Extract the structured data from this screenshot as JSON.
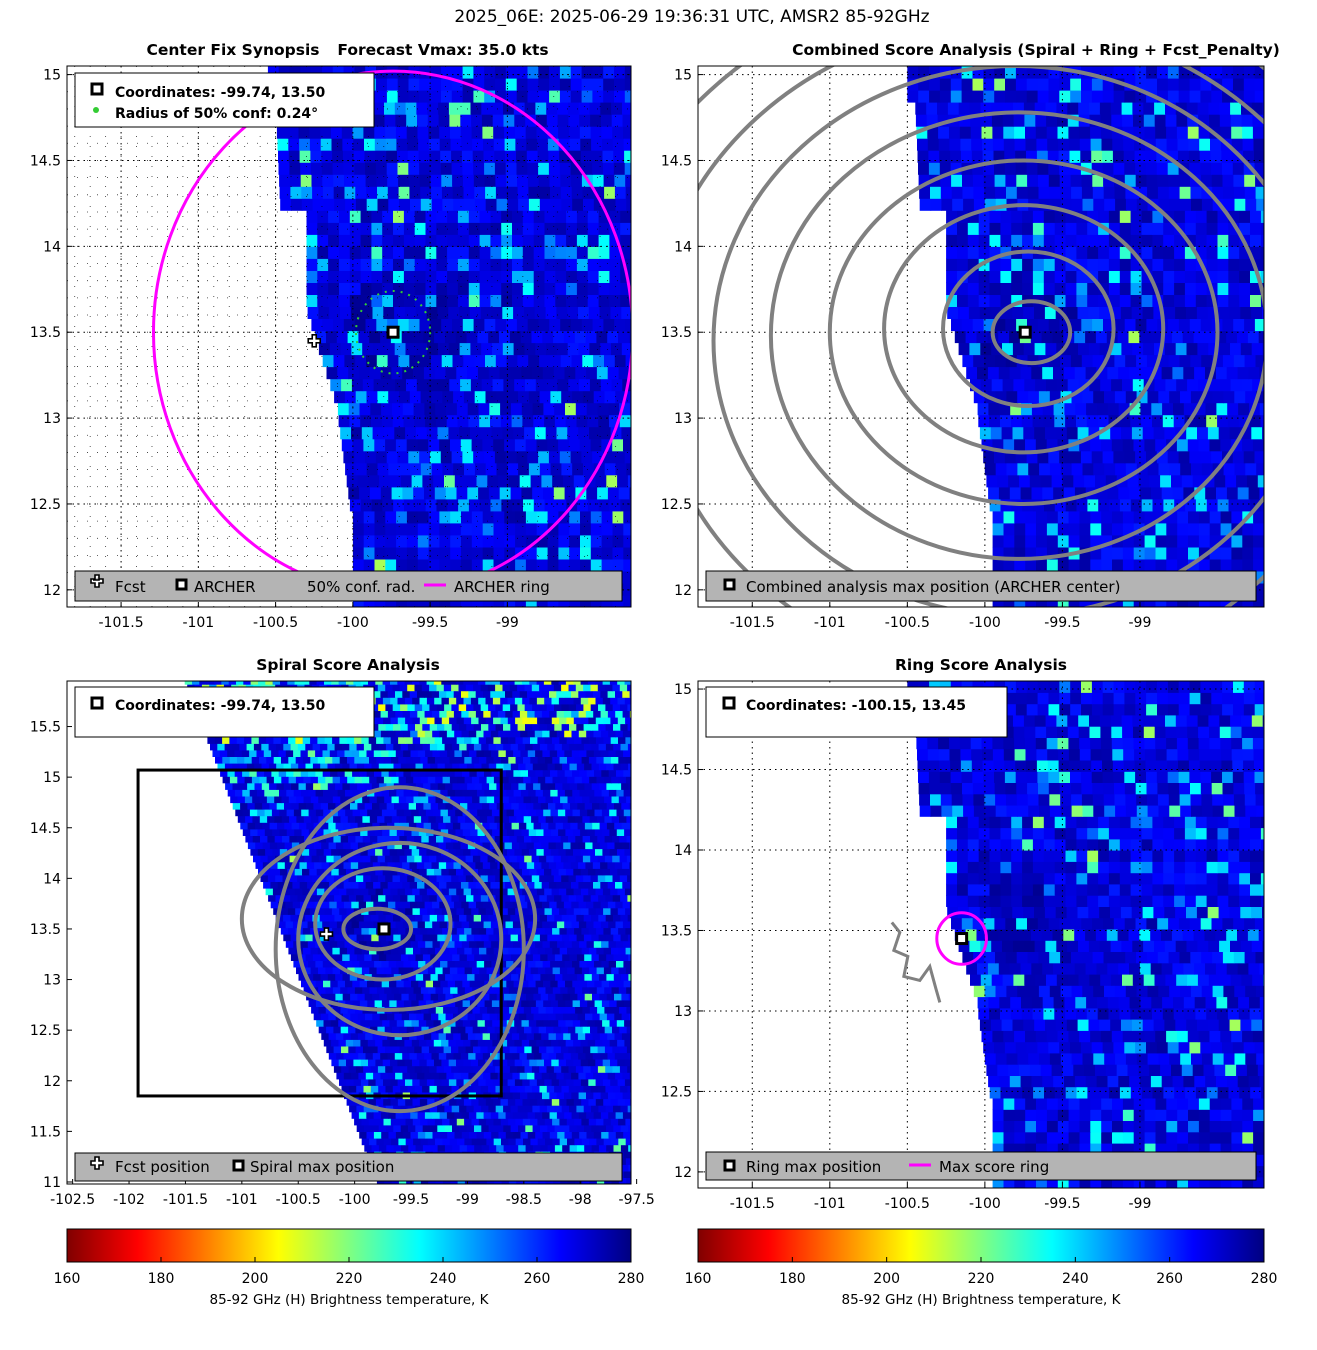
{
  "figure_title": "2025_06E: 2025-06-29 19:36:31 UTC, AMSR2 85-92GHz",
  "colors": {
    "ring_magenta": "#ff00ff",
    "contour_gray": "#808080",
    "legend_bg": "#b4b4b4",
    "conf_green": "#33cc33",
    "no_data": "#ffffff"
  },
  "chart_data": [
    {
      "id": "synopsis",
      "type": "heatmap",
      "title": "Center Fix Synopsis",
      "subtitle": "Forecast Vmax: 35.0 kts",
      "x_ticks": [
        "-101.5",
        "-101",
        "-100.5",
        "-100",
        "-99.5",
        "-99"
      ],
      "y_ticks": [
        "15",
        "14.5",
        "14",
        "13.5",
        "13",
        "12.5",
        "12"
      ],
      "xlim": [
        -101.85,
        -98.2
      ],
      "ylim": [
        11.9,
        15.05
      ],
      "info_lines": [
        "Coordinates: -99.74, 13.50",
        "Radius of 50% conf: 0.24°"
      ],
      "legend": [
        "Fcst",
        "ARCHER",
        "50% conf. rad.",
        "ARCHER ring"
      ],
      "archer_center": [
        -99.74,
        13.5
      ],
      "fcst_position": [
        -100.25,
        13.45
      ],
      "conf_radius_deg": 0.24,
      "archer_ring_radius_deg": 1.52
    },
    {
      "id": "combined",
      "type": "heatmap",
      "title": "Combined Score Analysis (Spiral + Ring + Fcst_Penalty)",
      "x_ticks": [
        "-101.5",
        "-101",
        "-100.5",
        "-100",
        "-99.5",
        "-99"
      ],
      "y_ticks": [
        "15",
        "14.5",
        "14",
        "13.5",
        "13",
        "12.5",
        "12"
      ],
      "xlim": [
        -101.85,
        -98.2
      ],
      "ylim": [
        11.9,
        15.05
      ],
      "legend": [
        "Combined analysis max position (ARCHER center)"
      ],
      "max_position": [
        -99.74,
        13.5
      ]
    },
    {
      "id": "spiral",
      "type": "heatmap",
      "title": "Spiral Score Analysis",
      "info_lines": [
        "Coordinates: -99.74, 13.50"
      ],
      "x_ticks": [
        "-102.5",
        "-102",
        "-101.5",
        "-101",
        "-100.5",
        "-100",
        "-99.5",
        "-99",
        "-98.5",
        "-98",
        "-97.5"
      ],
      "y_ticks": [
        "15.5",
        "15",
        "14.5",
        "14",
        "13.5",
        "13",
        "12.5",
        "12",
        "11.5",
        "11"
      ],
      "xlim": [
        -102.55,
        -97.55
      ],
      "ylim": [
        10.98,
        15.95
      ],
      "legend": [
        "Fcst position",
        "Spiral max position"
      ],
      "max_position": [
        -99.74,
        13.5
      ],
      "fcst_position": [
        -100.25,
        13.45
      ],
      "search_box": {
        "lon": [
          -101.92,
          -98.7
        ],
        "lat": [
          11.85,
          15.07
        ]
      }
    },
    {
      "id": "ring",
      "type": "heatmap",
      "title": "Ring Score Analysis",
      "info_lines": [
        "Coordinates: -100.15, 13.45"
      ],
      "x_ticks": [
        "-101.5",
        "-101",
        "-100.5",
        "-100",
        "-99.5",
        "-99"
      ],
      "y_ticks": [
        "15",
        "14.5",
        "14",
        "13.5",
        "13",
        "12.5",
        "12"
      ],
      "xlim": [
        -101.85,
        -98.2
      ],
      "ylim": [
        11.9,
        15.05
      ],
      "legend": [
        "Ring max position",
        "Max score ring"
      ],
      "max_position": [
        -100.15,
        13.45
      ],
      "max_score_ring_radius_deg": 0.16
    }
  ],
  "colorbars": [
    {
      "label": "85-92 GHz (H) Brightness temperature, K",
      "ticks": [
        "160",
        "180",
        "200",
        "220",
        "240",
        "260",
        "280"
      ],
      "range": [
        160,
        280
      ]
    },
    {
      "label": "85-92 GHz (H) Brightness temperature, K",
      "ticks": [
        "160",
        "180",
        "200",
        "220",
        "240",
        "260",
        "280"
      ],
      "range": [
        160,
        280
      ]
    }
  ]
}
